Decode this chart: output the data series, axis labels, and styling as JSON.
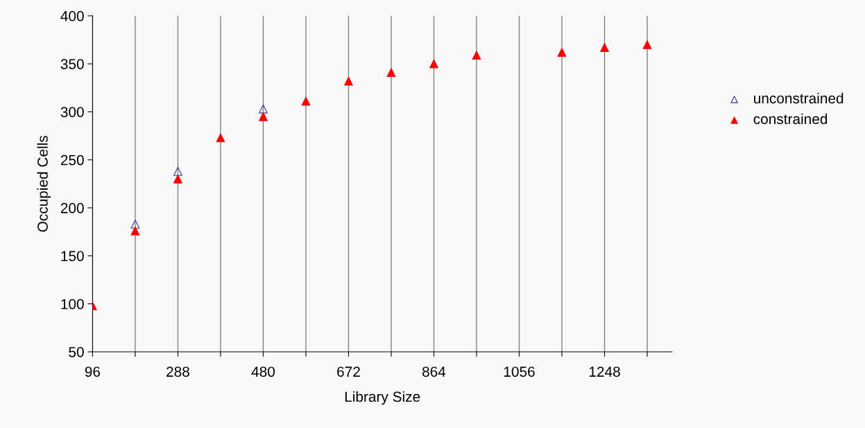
{
  "chart_data": {
    "type": "scatter",
    "xlabel": "Library Size",
    "ylabel": "Occupied Cells",
    "x": [
      96,
      192,
      288,
      384,
      480,
      576,
      672,
      768,
      864,
      960,
      1152,
      1248,
      1344
    ],
    "series": [
      {
        "name": "unconstrained",
        "color": "#333399",
        "marker": "triangle_open",
        "values": [
          null,
          183,
          238,
          null,
          303,
          null,
          null,
          null,
          null,
          null,
          null,
          null,
          null
        ]
      },
      {
        "name": "constrained",
        "color": "#ff0000",
        "marker": "triangle",
        "values": [
          98,
          176,
          230,
          273,
          295,
          311,
          332,
          341,
          350,
          359,
          362,
          367,
          370
        ]
      }
    ],
    "xlim": [
      96,
      1400
    ],
    "xticks": [
      96,
      {
        "value": 192,
        "label": null
      },
      288,
      {
        "value": 384,
        "label": null
      },
      480,
      {
        "value": 576,
        "label": null
      },
      672,
      {
        "value": 768,
        "label": null
      },
      864,
      {
        "value": 960,
        "label": null
      },
      1056,
      {
        "value": 1152,
        "label": null
      },
      1248,
      {
        "value": 1344,
        "label": null
      }
    ],
    "ylim": [
      50,
      400
    ],
    "yticks": [
      50,
      100,
      150,
      200,
      250,
      300,
      350,
      400
    ],
    "grid": "x",
    "legend": "right"
  }
}
